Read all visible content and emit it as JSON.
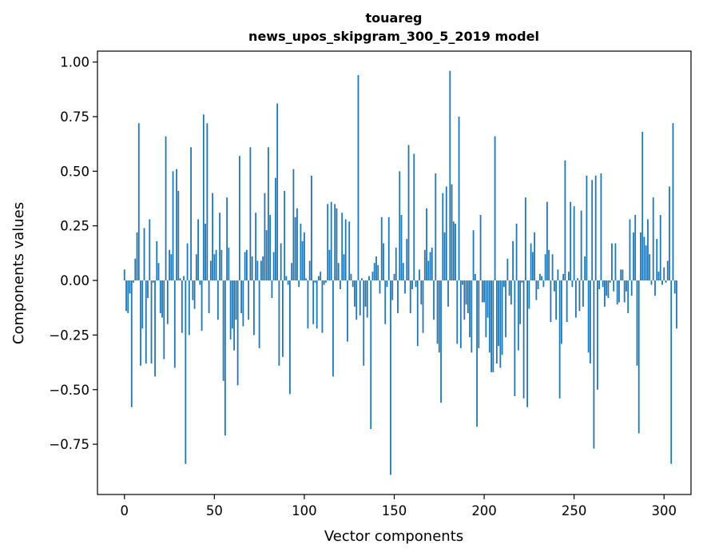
{
  "chart_data": {
    "type": "bar",
    "title": "touareg",
    "subtitle": "news_upos_skipgram_300_5_2019 model",
    "xlabel": "Vector components",
    "ylabel": "Components values",
    "xlim": [
      -15,
      315
    ],
    "ylim": [
      -0.98,
      1.05
    ],
    "xticks": [
      0,
      50,
      100,
      150,
      200,
      250,
      300
    ],
    "yticks": [
      -0.75,
      -0.5,
      -0.25,
      0.0,
      0.25,
      0.5,
      0.75,
      1.0
    ],
    "xtick_labels": [
      "0",
      "50",
      "100",
      "150",
      "200",
      "250",
      "300"
    ],
    "ytick_labels": [
      "−0.75",
      "−0.50",
      "−0.25",
      "0.00",
      "0.25",
      "0.50",
      "0.75",
      "1.00"
    ],
    "bar_color": "#1f77b4",
    "grid": false,
    "values": [
      0.05,
      -0.14,
      -0.15,
      -0.06,
      -0.58,
      -0.01,
      0.1,
      0.22,
      0.72,
      -0.39,
      -0.22,
      0.24,
      -0.38,
      -0.08,
      0.28,
      -0.38,
      -0.01,
      -0.44,
      0.18,
      0.08,
      -0.15,
      -0.17,
      -0.36,
      0.66,
      -0.2,
      0.14,
      0.12,
      0.5,
      -0.4,
      0.51,
      0.41,
      0.01,
      -0.24,
      0.02,
      -0.84,
      0.17,
      -0.25,
      0.61,
      -0.09,
      -0.13,
      0.12,
      0.28,
      -0.02,
      -0.23,
      0.76,
      0.26,
      0.72,
      -0.15,
      0.09,
      0.4,
      0.12,
      0.14,
      -0.18,
      0.31,
      0.14,
      -0.46,
      -0.71,
      0.38,
      0.15,
      -0.27,
      -0.22,
      -0.32,
      -0.18,
      -0.48,
      0.57,
      -0.15,
      -0.21,
      0.13,
      0.14,
      -0.18,
      0.61,
      0.11,
      -0.25,
      0.31,
      0.09,
      -0.31,
      0.09,
      0.11,
      0.4,
      0.23,
      0.61,
      0.3,
      -0.08,
      0.13,
      0.47,
      0.81,
      -0.39,
      0.17,
      -0.35,
      0.41,
      0.02,
      -0.02,
      -0.52,
      0.08,
      0.51,
      0.29,
      0.33,
      -0.03,
      0.26,
      0.18,
      0.22,
      0.01,
      -0.22,
      0.09,
      0.48,
      -0.2,
      -0.01,
      -0.22,
      0.02,
      0.04,
      -0.24,
      -0.02,
      -0.01,
      0.35,
      0.14,
      0.36,
      -0.44,
      0.35,
      0.33,
      0.08,
      -0.04,
      0.31,
      0.12,
      0.28,
      -0.28,
      0.27,
      0.03,
      -0.03,
      -0.12,
      -0.18,
      0.94,
      -0.16,
      0.01,
      -0.39,
      -0.12,
      -0.17,
      0.02,
      -0.68,
      0.04,
      0.08,
      0.11,
      0.07,
      -0.06,
      0.29,
      0.17,
      -0.2,
      -0.03,
      0.29,
      -0.89,
      -0.09,
      0.03,
      0.15,
      -0.15,
      0.5,
      0.3,
      0.08,
      -0.06,
      0.19,
      0.62,
      -0.15,
      -0.04,
      0.58,
      -0.03,
      -0.3,
      0.05,
      -0.11,
      -0.24,
      0.14,
      0.33,
      0.09,
      0.13,
      0.15,
      -0.18,
      0.49,
      -0.29,
      -0.33,
      -0.56,
      0.4,
      0.22,
      0.43,
      -0.12,
      0.96,
      0.44,
      0.27,
      0.26,
      -0.29,
      0.75,
      -0.31,
      -0.02,
      -0.18,
      -0.11,
      -0.15,
      -0.26,
      -0.33,
      0.23,
      0.03,
      -0.67,
      -0.31,
      0.3,
      -0.1,
      -0.1,
      -0.26,
      -0.17,
      -0.33,
      -0.42,
      -0.42,
      0.66,
      -0.38,
      -0.3,
      -0.4,
      -0.34,
      -0.03,
      -0.26,
      0.1,
      -0.07,
      -0.11,
      0.18,
      -0.53,
      0.26,
      -0.32,
      -0.2,
      -0.01,
      -0.54,
      0.38,
      -0.58,
      -0.13,
      0.17,
      0.13,
      0.22,
      -0.09,
      -0.04,
      0.03,
      0.02,
      -0.03,
      0.12,
      0.36,
      0.14,
      -0.19,
      0.12,
      -0.05,
      -0.18,
      0.05,
      -0.54,
      -0.29,
      0.03,
      0.55,
      -0.19,
      0.04,
      0.36,
      -0.03,
      0.34,
      -0.17,
      0.01,
      -0.14,
      0.32,
      -0.12,
      0.11,
      0.48,
      -0.33,
      -0.38,
      0.46,
      -0.77,
      0.48,
      -0.5,
      -0.04,
      0.49,
      -0.03,
      -0.12,
      -0.07,
      -0.08,
      -0.01,
      0.17,
      -0.05,
      0.17,
      -0.11,
      -0.1,
      0.05,
      0.05,
      -0.1,
      -0.05,
      -0.15,
      0.28,
      -0.07,
      0.22,
      0.3,
      -0.39,
      -0.7,
      0.22,
      0.68,
      0.2,
      0.16,
      0.28,
      0.12,
      -0.02,
      0.38,
      -0.07,
      0.19,
      0.04,
      0.3,
      -0.02,
      0.06,
      -0.01,
      0.09,
      0.43,
      -0.84,
      0.72,
      -0.06,
      -0.22
    ]
  }
}
